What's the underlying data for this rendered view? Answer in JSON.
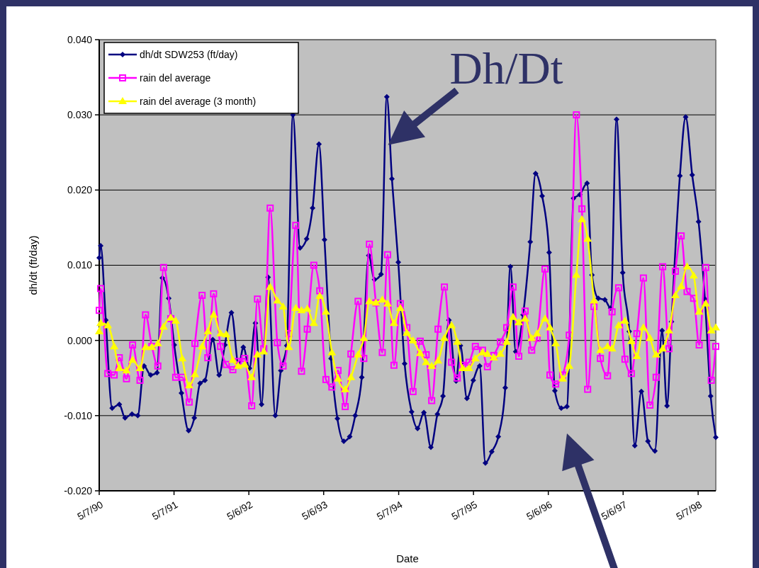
{
  "chart_data": {
    "type": "line",
    "xlabel": "Date",
    "ylabel": "dh/dt (ft/day)",
    "annotations": [
      {
        "text": "Dh/Dt",
        "x": "1994-03-16",
        "y": 0.026
      }
    ],
    "xlim": [
      "1990-05-07",
      "1998-08-01"
    ],
    "xticks": [
      {
        "value": "1990-05-07",
        "label": "5/7/90"
      },
      {
        "value": "1991-05-07",
        "label": "5/7/91"
      },
      {
        "value": "1992-05-06",
        "label": "5/6/92"
      },
      {
        "value": "1993-05-06",
        "label": "5/6/93"
      },
      {
        "value": "1994-05-07",
        "label": "5/7/94"
      },
      {
        "value": "1995-05-07",
        "label": "5/7/95"
      },
      {
        "value": "1996-05-06",
        "label": "5/6/96"
      },
      {
        "value": "1997-05-06",
        "label": "5/6/97"
      },
      {
        "value": "1998-05-07",
        "label": "5/7/98"
      }
    ],
    "ylim": [
      -0.02,
      0.04
    ],
    "yticks": [
      {
        "value": -0.02,
        "label": "-0.020"
      },
      {
        "value": -0.01,
        "label": "-0.010"
      },
      {
        "value": 0,
        "label": "0.000"
      },
      {
        "value": 0.01,
        "label": "0.010"
      },
      {
        "value": 0.02,
        "label": "0.020"
      },
      {
        "value": 0.03,
        "label": "0.030"
      },
      {
        "value": 0.04,
        "label": "0.040"
      }
    ],
    "grid": "y",
    "legend": "top left",
    "x": [
      "1990-05-07",
      "1990-05-14",
      "1990-06-18",
      "1990-07-19",
      "1990-08-13",
      "1990-09-17",
      "1990-10-17",
      "1990-11-22",
      "1990-12-19",
      "1991-01-19",
      "1991-02-17",
      "1991-03-17",
      "1991-04-21",
      "1991-05-15",
      "1991-06-16",
      "1991-07-20",
      "1991-08-17",
      "1991-09-21",
      "1991-10-19",
      "1991-11-16",
      "1991-12-20",
      "1992-01-17",
      "1992-02-18",
      "1992-03-15",
      "1992-04-16",
      "1992-05-20",
      "1992-06-17",
      "1992-07-18",
      "1992-08-18",
      "1992-09-22",
      "1992-10-20",
      "1992-11-17",
      "1992-12-21",
      "1993-01-18",
      "1993-02-15",
      "1993-03-19",
      "1993-04-17",
      "1993-05-17",
      "1993-06-15",
      "1993-07-15",
      "1993-08-19",
      "1993-09-16",
      "1993-10-21",
      "1993-11-18",
      "1993-12-15",
      "1994-01-16",
      "1994-02-16",
      "1994-03-14",
      "1994-04-14",
      "1994-05-15",
      "1994-06-16",
      "1994-07-16",
      "1994-08-20",
      "1994-09-18",
      "1994-10-15",
      "1994-11-15",
      "1994-12-16",
      "1995-01-20",
      "1995-02-17",
      "1995-03-15",
      "1995-04-15",
      "1995-05-16",
      "1995-06-20",
      "1995-07-14",
      "1995-08-14",
      "1995-09-15",
      "1995-10-16",
      "1995-11-16",
      "1995-12-14",
      "1996-01-14",
      "1996-02-15",
      "1996-03-12",
      "1996-04-20",
      "1996-05-14",
      "1996-06-11",
      "1996-07-15",
      "1996-08-16",
      "1996-09-20",
      "1996-10-17",
      "1996-11-14",
      "1996-12-15",
      "1997-01-15",
      "1997-02-19",
      "1997-03-13",
      "1997-04-14",
      "1997-05-15",
      "1997-06-15",
      "1997-07-12",
      "1997-08-13",
      "1997-09-14",
      "1997-10-14",
      "1997-11-15",
      "1997-12-16",
      "1998-01-16",
      "1998-02-13",
      "1998-03-14",
      "1998-04-15",
      "1998-05-12",
      "1998-06-13",
      "1998-07-10",
      "1998-08-01"
    ],
    "series": [
      {
        "name": "dh/dt SDW253 (ft/day)",
        "color": "#000080",
        "marker": "diamond",
        "x": [
          "1990-05-07",
          "1990-05-14",
          "1990-06-08",
          "1990-07-09",
          "1990-08-13",
          "1990-09-10",
          "1990-10-14",
          "1990-11-11",
          "1990-12-12",
          "1991-01-13",
          "1991-02-13",
          "1991-03-11",
          "1991-04-11",
          "1991-05-08",
          "1991-06-12",
          "1991-07-17",
          "1991-08-14",
          "1991-09-11",
          "1991-10-05",
          "1991-11-12",
          "1991-12-13",
          "1992-01-10",
          "1992-02-11",
          "1992-03-18",
          "1992-04-09",
          "1992-05-09",
          "1992-06-07",
          "1992-07-07",
          "1992-08-08",
          "1992-09-12",
          "1992-10-09",
          "1992-11-07",
          "1992-12-07",
          "1993-01-11",
          "1993-02-12",
          "1993-03-13",
          "1993-04-13",
          "1993-05-10",
          "1993-06-11",
          "1993-07-12",
          "1993-08-12",
          "1993-09-10",
          "1993-10-07",
          "1993-11-08",
          "1993-12-12",
          "1994-01-09",
          "1994-02-10",
          "1994-03-10",
          "1994-04-04",
          "1994-05-05",
          "1994-06-05",
          "1994-07-09",
          "1994-08-07",
          "1994-09-07",
          "1994-10-11",
          "1994-11-12",
          "1994-12-09",
          "1995-01-07",
          "1995-02-11",
          "1995-03-04",
          "1995-04-05",
          "1995-05-06",
          "1995-06-06",
          "1995-07-04",
          "1995-08-04",
          "1995-09-05",
          "1995-10-09",
          "1995-11-03",
          "1995-11-29",
          "1996-01-04",
          "1996-02-08",
          "1996-03-05",
          "1996-04-06",
          "1996-05-10",
          "1996-06-07",
          "1996-07-08",
          "1996-08-05",
          "1996-09-06",
          "1996-10-07",
          "1996-11-11",
          "1996-12-05",
          "1997-01-05",
          "1997-02-06",
          "1997-03-06",
          "1997-04-04",
          "1997-05-04",
          "1997-06-05",
          "1997-07-02",
          "1997-08-03",
          "1997-09-04",
          "1997-10-08",
          "1997-11-12",
          "1997-12-06",
          "1997-12-28",
          "1998-02-07",
          "1998-03-07",
          "1998-04-08",
          "1998-05-09",
          "1998-06-09",
          "1998-07-07",
          "1998-08-01"
        ],
        "values": [
          0.011,
          0.0126,
          0.0027,
          -0.009,
          -0.0085,
          -0.0103,
          -0.0098,
          -0.01,
          -0.0034,
          -0.0046,
          -0.0043,
          0.0083,
          0.0056,
          -0.0006,
          -0.007,
          -0.012,
          -0.0103,
          -0.0057,
          -0.0053,
          0.0001,
          -0.0046,
          -0.0006,
          0.0037,
          -0.0034,
          -0.0009,
          -0.0037,
          0.0023,
          -0.0085,
          0.0084,
          -0.01,
          -0.004,
          -0.0007,
          0.03,
          0.0123,
          0.0135,
          0.0176,
          0.0261,
          0.0134,
          -0.0024,
          -0.0104,
          -0.0134,
          -0.0128,
          -0.01,
          -0.0049,
          0.0113,
          0.0081,
          0.0088,
          0.0324,
          0.0215,
          0.0104,
          -0.0031,
          -0.0095,
          -0.0117,
          -0.0096,
          -0.0142,
          -0.0098,
          -0.0074,
          0.0027,
          -0.0054,
          -0.0007,
          -0.0077,
          -0.0053,
          -0.0034,
          -0.0163,
          -0.0148,
          -0.0128,
          -0.0063,
          0.0098,
          -0.0015,
          0.0034,
          0.0131,
          0.0222,
          0.0192,
          0.0117,
          -0.0067,
          -0.009,
          -0.0088,
          0.0189,
          0.0194,
          0.0209,
          0.0087,
          0.0056,
          0.0054,
          0.0043,
          0.0294,
          0.009,
          0.0012,
          -0.014,
          -0.0068,
          -0.0134,
          -0.0147,
          0.0013,
          -0.0087,
          0.0025,
          0.0219,
          0.0297,
          0.022,
          0.0158,
          0.0055,
          -0.0074,
          -0.0129
        ]
      },
      {
        "name": "rain del average",
        "color": "#ff00ff",
        "marker": "square",
        "values": [
          0.004,
          0.0069,
          -0.0044,
          -0.0046,
          -0.0023,
          -0.0051,
          -0.0006,
          -0.0053,
          0.0034,
          -0.0008,
          -0.0034,
          0.0097,
          0.0029,
          -0.0049,
          -0.0049,
          -0.0082,
          -0.0004,
          0.006,
          -0.0023,
          0.0062,
          -0.0008,
          -0.0032,
          -0.0039,
          -0.0028,
          -0.0024,
          -0.0087,
          0.0055,
          -0.0011,
          0.0176,
          -0.0003,
          -0.0034,
          0.0009,
          0.0153,
          -0.0041,
          0.0015,
          0.01,
          0.0066,
          -0.0052,
          -0.0062,
          -0.004,
          -0.0088,
          -0.0018,
          0.0052,
          -0.0024,
          0.0128,
          0.005,
          -0.0016,
          0.0114,
          -0.0033,
          0.0049,
          0.0017,
          -0.0068,
          -0.0001,
          -0.0019,
          -0.008,
          0.0015,
          0.0071,
          -0.0029,
          -0.005,
          -0.0033,
          -0.0029,
          -0.0008,
          -0.0013,
          -0.0035,
          -0.002,
          -0.0002,
          0.0017,
          0.0071,
          -0.0021,
          0.0039,
          -0.0013,
          0.0003,
          0.0095,
          -0.0046,
          -0.0058,
          -0.0046,
          0.0007,
          0.03,
          0.0175,
          -0.0065,
          0.0045,
          -0.0024,
          -0.0047,
          0.0038,
          0.007,
          -0.0025,
          -0.0044,
          0.0009,
          0.0083,
          -0.0086,
          -0.0049,
          0.0098,
          -0.0011,
          0.0092,
          0.0139,
          0.0065,
          0.0056,
          -0.0006,
          0.0097,
          -0.0053,
          -0.0008
        ]
      },
      {
        "name": "rain del average (3 month)",
        "color": "#ffff00",
        "marker": "triangle",
        "values": [
          0.0012,
          0.0023,
          0.002,
          -0.0008,
          -0.0037,
          -0.004,
          -0.0026,
          -0.0037,
          -0.0009,
          -0.0009,
          -0.0004,
          0.0018,
          0.003,
          0.0026,
          -0.0024,
          -0.006,
          -0.0045,
          -0.0008,
          0.0012,
          0.0034,
          0.0009,
          0.0008,
          -0.0026,
          -0.0034,
          -0.0032,
          -0.0049,
          -0.0019,
          -0.0015,
          0.0071,
          0.0053,
          0.0045,
          -0.0009,
          0.0043,
          0.004,
          0.0042,
          0.0023,
          0.0059,
          0.0038,
          -0.0016,
          -0.0051,
          -0.0065,
          -0.0049,
          -0.0019,
          0.0003,
          0.0052,
          0.005,
          0.0054,
          0.0049,
          0.0023,
          0.0043,
          0.001,
          0,
          -0.0017,
          -0.0029,
          -0.0034,
          -0.0027,
          0.0003,
          0.002,
          -0.0002,
          -0.0037,
          -0.0037,
          -0.0024,
          -0.0016,
          -0.0018,
          -0.0023,
          -0.0018,
          -0.0002,
          0.0031,
          0.0024,
          0.0029,
          0.0003,
          0.0009,
          0.0029,
          0.0017,
          -0.0004,
          -0.0051,
          -0.0034,
          0.0087,
          0.0161,
          0.0135,
          0.0053,
          -0.0013,
          -0.0008,
          -0.0011,
          0.002,
          0.0026,
          -0.0001,
          -0.0021,
          0.0017,
          0.0003,
          -0.0019,
          -0.0011,
          0.0013,
          0.006,
          0.0072,
          0.0098,
          0.0086,
          0.0038,
          0.0049,
          0.0013,
          0.0017
        ]
      }
    ]
  }
}
